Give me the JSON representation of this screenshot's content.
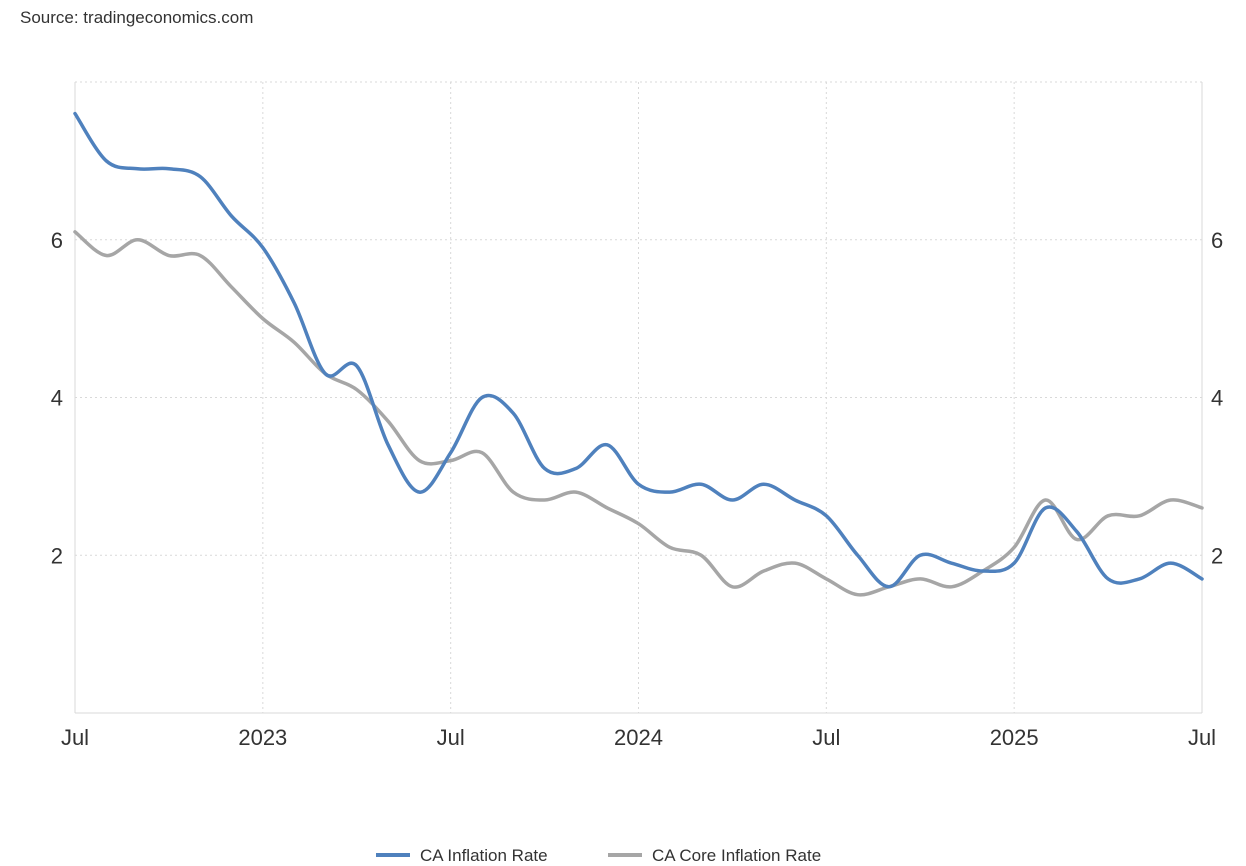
{
  "source": "Source: tradingeconomics.com",
  "chart_data": {
    "type": "line",
    "x_start": "2022-07",
    "x": [
      "Jul",
      "Aug",
      "Sep",
      "Oct",
      "Nov",
      "Dec",
      "2023",
      "Feb",
      "Mar",
      "Apr",
      "May",
      "Jun",
      "Jul",
      "Aug",
      "Sep",
      "Oct",
      "Nov",
      "Dec",
      "2024",
      "Feb",
      "Mar",
      "Apr",
      "May",
      "Jun",
      "Jul",
      "Aug",
      "Sep",
      "Oct",
      "Nov",
      "Dec",
      "2025",
      "Feb",
      "Mar",
      "Apr",
      "May",
      "Jun",
      "Jul"
    ],
    "x_tick_labels": [
      "Jul",
      "2023",
      "Jul",
      "2024",
      "Jul",
      "2025",
      "Jul"
    ],
    "y_tick_labels": [
      2,
      4,
      6
    ],
    "ylim": [
      0,
      8
    ],
    "grid": true,
    "legend_position": "bottom-center",
    "series": [
      {
        "name": "CA Inflation Rate",
        "color": "#4f81bd",
        "values": [
          7.6,
          7.0,
          6.9,
          6.9,
          6.8,
          6.3,
          5.9,
          5.2,
          4.3,
          4.4,
          3.4,
          2.8,
          3.3,
          4.0,
          3.8,
          3.1,
          3.1,
          3.4,
          2.9,
          2.8,
          2.9,
          2.7,
          2.9,
          2.7,
          2.5,
          2.0,
          1.6,
          2.0,
          1.9,
          1.8,
          1.9,
          2.6,
          2.3,
          1.7,
          1.7,
          1.9,
          1.7
        ]
      },
      {
        "name": "CA Core Inflation Rate",
        "color": "#a6a6a6",
        "values": [
          6.1,
          5.8,
          6.0,
          5.8,
          5.8,
          5.4,
          5.0,
          4.7,
          4.3,
          4.1,
          3.7,
          3.2,
          3.2,
          3.3,
          2.8,
          2.7,
          2.8,
          2.6,
          2.4,
          2.1,
          2.0,
          1.6,
          1.8,
          1.9,
          1.7,
          1.5,
          1.6,
          1.7,
          1.6,
          1.8,
          2.1,
          2.7,
          2.2,
          2.5,
          2.5,
          2.7,
          2.6
        ]
      }
    ]
  }
}
